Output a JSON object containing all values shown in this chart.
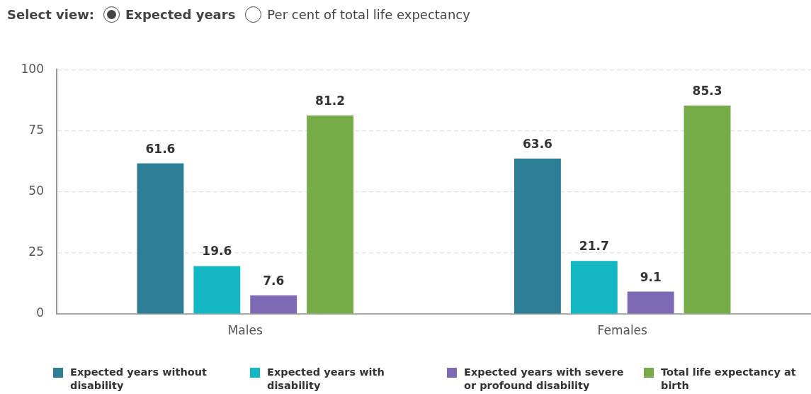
{
  "chart_data": {
    "type": "bar",
    "annotations": [
      "Select view:",
      "Expected years",
      "Per cent of total life expectancy"
    ],
    "categories": [
      "Males",
      "Females"
    ],
    "series": [
      {
        "name": "Expected years without disability",
        "color": "#2e7d96",
        "values": [
          61.6,
          63.6
        ]
      },
      {
        "name": "Expected years with disability",
        "color": "#14b8c4",
        "values": [
          19.6,
          21.7
        ]
      },
      {
        "name": "Expected years with severe or profound disability",
        "color": "#7e69b5",
        "values": [
          7.6,
          9.1
        ]
      },
      {
        "name": "Total life expectancy at birth",
        "color": "#76ad48",
        "values": [
          81.2,
          85.3
        ]
      }
    ],
    "ylim": [
      0,
      100
    ],
    "yticks": [
      0,
      25,
      50,
      75,
      100
    ],
    "grid": "y",
    "legend": "bottom",
    "data_labels": true
  }
}
